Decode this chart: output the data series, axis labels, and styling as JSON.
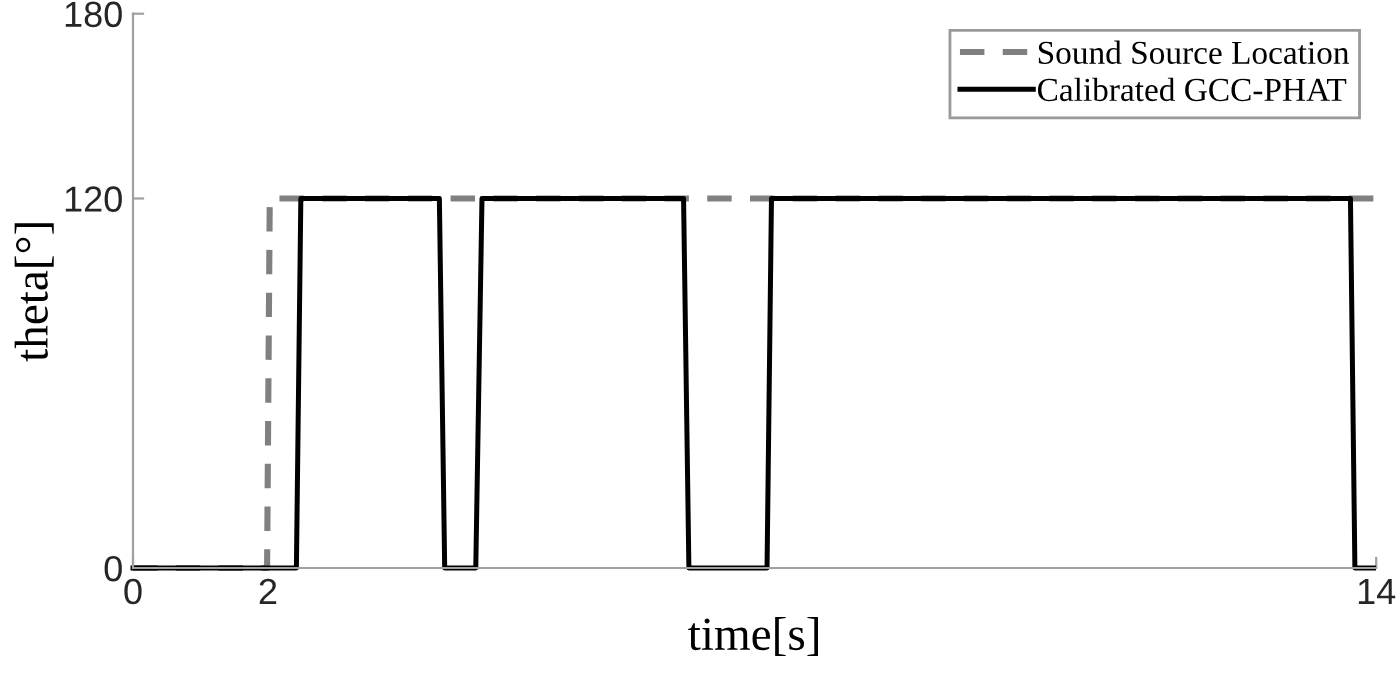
{
  "chart_data": {
    "type": "line",
    "xlabel": "time[s]",
    "ylabel": "theta[°]",
    "xlim": [
      0,
      14
    ],
    "xticks": [
      0,
      {
        "value": 1.52,
        "label": "2"
      },
      14
    ],
    "ylim": [
      0,
      180
    ],
    "yticks": [
      0,
      120,
      180
    ],
    "grid": false,
    "legend": "top right",
    "marker": "none",
    "series": [
      {
        "name": "Sound Source Location",
        "color": "#808080",
        "line_style": "dashed",
        "x": [
          0,
          1.51,
          1.54,
          14
        ],
        "values": [
          0,
          0,
          120,
          120
        ]
      },
      {
        "name": "Calibrated GCC-PHAT",
        "color": "#000000",
        "line_style": "solid",
        "x": [
          0,
          1.84,
          1.89,
          3.45,
          3.51,
          3.86,
          3.93,
          6.2,
          6.26,
          7.14,
          7.19,
          13.71,
          13.76,
          13.97
        ],
        "values": [
          0,
          0,
          120,
          120,
          0,
          0,
          120,
          120,
          0,
          0,
          120,
          120,
          0,
          0
        ]
      }
    ]
  }
}
